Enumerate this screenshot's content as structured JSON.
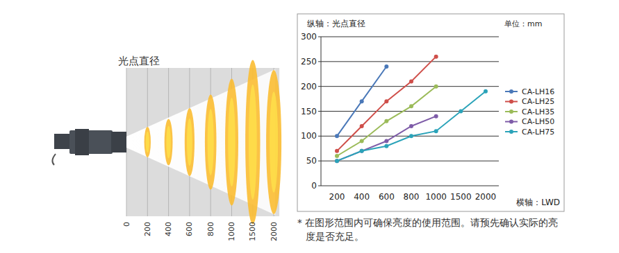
{
  "chart_data": {
    "type": "line",
    "ylabel": "纵轴：光点直径",
    "xlabel": "横轴：LWD",
    "unit": "单位：mm",
    "note": "* 在图形范围内可确保亮度的使用范围。请预先确认实际的亮度是否充足。",
    "categories": [
      "200",
      "400",
      "600",
      "800",
      "1000",
      "1500",
      "2000"
    ],
    "series": [
      {
        "name": "CA-LH16",
        "color": "#4a78b8",
        "marker": "circle",
        "values": [
          100,
          170,
          240,
          null,
          null,
          null,
          null
        ]
      },
      {
        "name": "CA-LH25",
        "color": "#cf4f4a",
        "marker": "circle",
        "values": [
          70,
          120,
          170,
          210,
          260,
          null,
          null
        ]
      },
      {
        "name": "CA-LH35",
        "color": "#9bbb59",
        "marker": "circle",
        "values": [
          60,
          90,
          130,
          160,
          200,
          null,
          null
        ]
      },
      {
        "name": "CA-LH50",
        "color": "#7e5ca8",
        "marker": "circle",
        "values": [
          50,
          70,
          90,
          120,
          140,
          null,
          null
        ]
      },
      {
        "name": "CA-LH75",
        "color": "#2ba3b9",
        "marker": "circle",
        "values": [
          50,
          70,
          80,
          100,
          110,
          150,
          190
        ]
      }
    ],
    "ylim": [
      0,
      300
    ],
    "yticks": [
      0,
      50,
      100,
      150,
      200,
      250,
      300
    ],
    "grid": true,
    "legend": "right"
  },
  "illustration": {
    "title": "光点直径",
    "distance_labels": [
      "0",
      "200",
      "400",
      "600",
      "800",
      "1000",
      "1500",
      "2000"
    ]
  }
}
